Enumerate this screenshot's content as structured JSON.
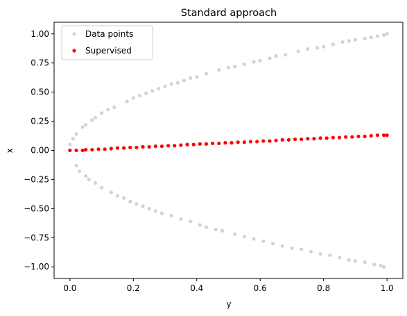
{
  "chart_data": {
    "type": "scatter",
    "title": "Standard approach",
    "xlabel": "y",
    "ylabel": "x",
    "xlim": [
      -0.05,
      1.05
    ],
    "ylim": [
      -1.1,
      1.1
    ],
    "xticks": [
      0.0,
      0.2,
      0.4,
      0.6,
      0.8,
      1.0
    ],
    "xtick_labels": [
      "0.0",
      "0.2",
      "0.4",
      "0.6",
      "0.8",
      "1.0"
    ],
    "yticks": [
      -1.0,
      -0.75,
      -0.5,
      -0.25,
      0.0,
      0.25,
      0.5,
      0.75,
      1.0
    ],
    "ytick_labels": [
      "−1.00",
      "−0.75",
      "−0.50",
      "−0.25",
      "0.00",
      "0.25",
      "0.50",
      "0.75",
      "1.00"
    ],
    "grid": false,
    "legend_position": "top-left",
    "series": [
      {
        "name": "Data points",
        "color": "#d3d3d3",
        "points": [
          [
            0.01,
            0.1
          ],
          [
            0.02,
            0.14
          ],
          [
            0.04,
            0.2
          ],
          [
            0.05,
            0.22
          ],
          [
            0.07,
            0.26
          ],
          [
            0.08,
            0.28
          ],
          [
            0.1,
            0.32
          ],
          [
            0.12,
            0.35
          ],
          [
            0.14,
            0.37
          ],
          [
            0.18,
            0.42
          ],
          [
            0.2,
            0.45
          ],
          [
            0.22,
            0.47
          ],
          [
            0.24,
            0.49
          ],
          [
            0.26,
            0.51
          ],
          [
            0.28,
            0.53
          ],
          [
            0.3,
            0.55
          ],
          [
            0.32,
            0.57
          ],
          [
            0.34,
            0.58
          ],
          [
            0.36,
            0.6
          ],
          [
            0.38,
            0.62
          ],
          [
            0.4,
            0.63
          ],
          [
            0.43,
            0.66
          ],
          [
            0.47,
            0.69
          ],
          [
            0.5,
            0.71
          ],
          [
            0.52,
            0.72
          ],
          [
            0.55,
            0.74
          ],
          [
            0.58,
            0.76
          ],
          [
            0.6,
            0.77
          ],
          [
            0.63,
            0.79
          ],
          [
            0.65,
            0.81
          ],
          [
            0.68,
            0.82
          ],
          [
            0.72,
            0.85
          ],
          [
            0.75,
            0.87
          ],
          [
            0.78,
            0.88
          ],
          [
            0.8,
            0.89
          ],
          [
            0.83,
            0.91
          ],
          [
            0.86,
            0.93
          ],
          [
            0.88,
            0.94
          ],
          [
            0.9,
            0.95
          ],
          [
            0.93,
            0.96
          ],
          [
            0.95,
            0.97
          ],
          [
            0.97,
            0.98
          ],
          [
            0.99,
            0.99
          ],
          [
            1.0,
            1.0
          ],
          [
            0.02,
            -0.13
          ],
          [
            0.03,
            -0.18
          ],
          [
            0.05,
            -0.22
          ],
          [
            0.06,
            -0.25
          ],
          [
            0.08,
            -0.28
          ],
          [
            0.1,
            -0.32
          ],
          [
            0.13,
            -0.36
          ],
          [
            0.15,
            -0.39
          ],
          [
            0.17,
            -0.41
          ],
          [
            0.19,
            -0.44
          ],
          [
            0.21,
            -0.46
          ],
          [
            0.23,
            -0.48
          ],
          [
            0.25,
            -0.5
          ],
          [
            0.27,
            -0.52
          ],
          [
            0.29,
            -0.54
          ],
          [
            0.32,
            -0.56
          ],
          [
            0.35,
            -0.59
          ],
          [
            0.38,
            -0.61
          ],
          [
            0.41,
            -0.64
          ],
          [
            0.43,
            -0.66
          ],
          [
            0.46,
            -0.68
          ],
          [
            0.48,
            -0.69
          ],
          [
            0.52,
            -0.72
          ],
          [
            0.55,
            -0.74
          ],
          [
            0.58,
            -0.76
          ],
          [
            0.61,
            -0.78
          ],
          [
            0.64,
            -0.8
          ],
          [
            0.67,
            -0.82
          ],
          [
            0.7,
            -0.84
          ],
          [
            0.73,
            -0.85
          ],
          [
            0.76,
            -0.87
          ],
          [
            0.79,
            -0.89
          ],
          [
            0.82,
            -0.9
          ],
          [
            0.85,
            -0.92
          ],
          [
            0.88,
            -0.94
          ],
          [
            0.9,
            -0.95
          ],
          [
            0.93,
            -0.96
          ],
          [
            0.96,
            -0.98
          ],
          [
            0.98,
            -0.99
          ],
          [
            0.99,
            -1.0
          ],
          [
            0.0,
            0.05
          ]
        ]
      },
      {
        "name": "Supervised",
        "color": "#ff0000",
        "points": [
          [
            0.0,
            0.0
          ],
          [
            0.02,
            0.0
          ],
          [
            0.04,
            0.0
          ],
          [
            0.05,
            0.005
          ],
          [
            0.07,
            0.005
          ],
          [
            0.09,
            0.01
          ],
          [
            0.11,
            0.01
          ],
          [
            0.13,
            0.015
          ],
          [
            0.15,
            0.02
          ],
          [
            0.17,
            0.02
          ],
          [
            0.19,
            0.025
          ],
          [
            0.21,
            0.025
          ],
          [
            0.23,
            0.03
          ],
          [
            0.25,
            0.03
          ],
          [
            0.27,
            0.035
          ],
          [
            0.29,
            0.035
          ],
          [
            0.31,
            0.04
          ],
          [
            0.33,
            0.04
          ],
          [
            0.35,
            0.045
          ],
          [
            0.37,
            0.05
          ],
          [
            0.39,
            0.05
          ],
          [
            0.41,
            0.055
          ],
          [
            0.43,
            0.055
          ],
          [
            0.45,
            0.06
          ],
          [
            0.47,
            0.06
          ],
          [
            0.49,
            0.065
          ],
          [
            0.51,
            0.065
          ],
          [
            0.53,
            0.07
          ],
          [
            0.55,
            0.07
          ],
          [
            0.57,
            0.075
          ],
          [
            0.59,
            0.075
          ],
          [
            0.61,
            0.08
          ],
          [
            0.63,
            0.08
          ],
          [
            0.65,
            0.085
          ],
          [
            0.67,
            0.09
          ],
          [
            0.69,
            0.09
          ],
          [
            0.71,
            0.095
          ],
          [
            0.73,
            0.095
          ],
          [
            0.75,
            0.1
          ],
          [
            0.77,
            0.1
          ],
          [
            0.79,
            0.105
          ],
          [
            0.81,
            0.105
          ],
          [
            0.83,
            0.11
          ],
          [
            0.85,
            0.11
          ],
          [
            0.87,
            0.115
          ],
          [
            0.89,
            0.115
          ],
          [
            0.91,
            0.12
          ],
          [
            0.93,
            0.12
          ],
          [
            0.95,
            0.125
          ],
          [
            0.97,
            0.13
          ],
          [
            0.99,
            0.13
          ],
          [
            1.0,
            0.13
          ]
        ]
      }
    ]
  }
}
